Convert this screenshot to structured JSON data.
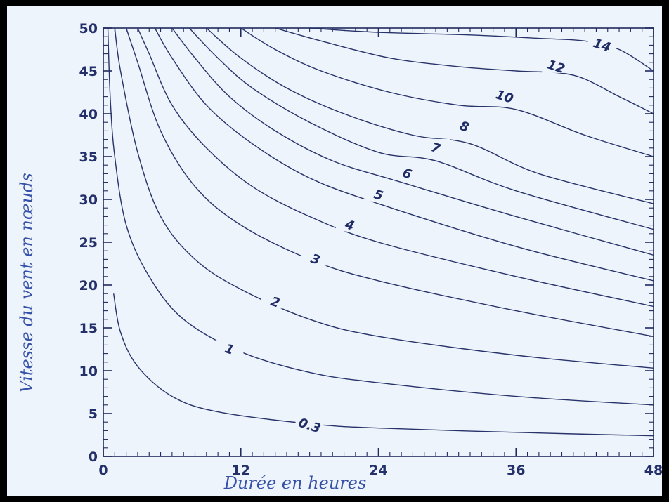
{
  "chart_data": {
    "type": "line",
    "title": "",
    "xlabel": "Durée en heures",
    "ylabel": "Vitesse du vent en nœuds",
    "xlim": [
      0,
      48
    ],
    "ylim": [
      0,
      50
    ],
    "x_ticks": [
      "0",
      "12",
      "24",
      "36",
      "48"
    ],
    "y_ticks": [
      "0",
      "5",
      "10",
      "15",
      "20",
      "25",
      "30",
      "35",
      "40",
      "45",
      "50"
    ],
    "grid": false,
    "colors": {
      "line": "#27336a",
      "background": "#eef4fb",
      "title": "#3651a8"
    },
    "series": [
      {
        "name": "0.3",
        "label_at": [
          18,
          3.6
        ],
        "points": [
          [
            0.9,
            19
          ],
          [
            1.5,
            14.5
          ],
          [
            3,
            10.5
          ],
          [
            6,
            7
          ],
          [
            10,
            5.2
          ],
          [
            18,
            3.8
          ],
          [
            24,
            3.3
          ],
          [
            36,
            2.8
          ],
          [
            48,
            2.4
          ]
        ]
      },
      {
        "name": "1",
        "label_at": [
          11,
          12.5
        ],
        "points": [
          [
            0.4,
            50
          ],
          [
            0.6,
            42
          ],
          [
            1,
            35
          ],
          [
            2,
            27
          ],
          [
            4,
            21
          ],
          [
            7,
            16
          ],
          [
            12,
            12.2
          ],
          [
            18,
            9.8
          ],
          [
            24,
            8.6
          ],
          [
            36,
            7
          ],
          [
            48,
            6
          ]
        ]
      },
      {
        "name": "2",
        "label_at": [
          15,
          18
        ],
        "points": [
          [
            1,
            50
          ],
          [
            1.5,
            45
          ],
          [
            3,
            35.5
          ],
          [
            5,
            28
          ],
          [
            8,
            23
          ],
          [
            12,
            19.5
          ],
          [
            18,
            16
          ],
          [
            24,
            14
          ],
          [
            36,
            11.8
          ],
          [
            48,
            10.3
          ]
        ]
      },
      {
        "name": "3",
        "label_at": [
          18.5,
          23
        ],
        "points": [
          [
            2,
            50
          ],
          [
            3,
            46
          ],
          [
            5,
            38
          ],
          [
            8,
            31.5
          ],
          [
            12,
            27
          ],
          [
            18,
            23
          ],
          [
            24,
            20.5
          ],
          [
            36,
            17
          ],
          [
            48,
            14
          ]
        ]
      },
      {
        "name": "4",
        "label_at": [
          21.5,
          27
        ],
        "points": [
          [
            3,
            50
          ],
          [
            4,
            47
          ],
          [
            6,
            41
          ],
          [
            9,
            36
          ],
          [
            13,
            31.5
          ],
          [
            18,
            28
          ],
          [
            24,
            25
          ],
          [
            36,
            21
          ],
          [
            48,
            17.5
          ]
        ]
      },
      {
        "name": "5",
        "label_at": [
          24,
          30.5
        ],
        "points": [
          [
            4.5,
            50
          ],
          [
            6,
            46.5
          ],
          [
            9,
            41
          ],
          [
            13,
            36.5
          ],
          [
            18,
            32.5
          ],
          [
            24,
            29.5
          ],
          [
            36,
            24.5
          ],
          [
            48,
            20.5
          ]
        ]
      },
      {
        "name": "6",
        "label_at": [
          26.5,
          33
        ],
        "points": [
          [
            6,
            50
          ],
          [
            8,
            46.5
          ],
          [
            11,
            42
          ],
          [
            15,
            38
          ],
          [
            20,
            34.5
          ],
          [
            26,
            32
          ],
          [
            36,
            28
          ],
          [
            48,
            23.5
          ]
        ]
      },
      {
        "name": "7",
        "label_at": [
          29,
          36
        ],
        "points": [
          [
            7.5,
            50
          ],
          [
            10,
            46.5
          ],
          [
            13,
            43
          ],
          [
            18,
            39
          ],
          [
            24,
            35.5
          ],
          [
            29,
            34.5
          ],
          [
            36,
            31
          ],
          [
            48,
            26.5
          ]
        ]
      },
      {
        "name": "8",
        "label_at": [
          31.5,
          38.5
        ],
        "points": [
          [
            9,
            50
          ],
          [
            12,
            46.5
          ],
          [
            16,
            43
          ],
          [
            21,
            40
          ],
          [
            27,
            37.5
          ],
          [
            32,
            36.5
          ],
          [
            38,
            33
          ],
          [
            48,
            29.5
          ]
        ]
      },
      {
        "name": "10",
        "label_at": [
          35,
          42
        ],
        "points": [
          [
            12,
            50
          ],
          [
            15,
            47.5
          ],
          [
            19,
            45
          ],
          [
            25,
            42.5
          ],
          [
            31,
            41
          ],
          [
            36,
            40.5
          ],
          [
            42,
            37.5
          ],
          [
            48,
            35
          ]
        ]
      },
      {
        "name": "12",
        "label_at": [
          39.5,
          45.5
        ],
        "points": [
          [
            15,
            50
          ],
          [
            19,
            48.5
          ],
          [
            25,
            46.5
          ],
          [
            31,
            45.5
          ],
          [
            36,
            45
          ],
          [
            41,
            44.5
          ],
          [
            45,
            42
          ],
          [
            48,
            40
          ]
        ]
      },
      {
        "name": "14",
        "label_at": [
          43.5,
          48
        ],
        "points": [
          [
            18,
            50
          ],
          [
            24,
            49.5
          ],
          [
            32,
            49.2
          ],
          [
            38,
            48.8
          ],
          [
            42,
            48.5
          ],
          [
            45,
            47.5
          ],
          [
            48,
            45
          ]
        ]
      }
    ]
  }
}
